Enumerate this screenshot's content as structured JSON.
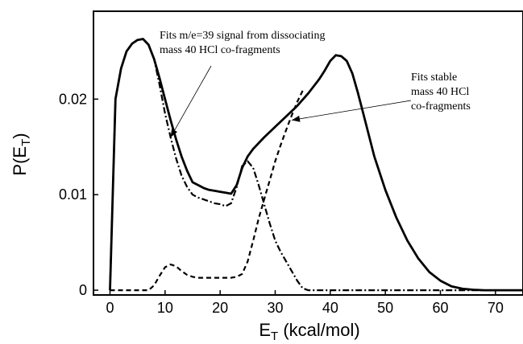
{
  "chart_data": {
    "type": "line",
    "xlabel": {
      "main": "E",
      "sub": "T",
      "unit": " (kcal/mol)"
    },
    "ylabel": {
      "main": "P(E",
      "sub": "T",
      "close": ")"
    },
    "xlim": [
      -3,
      75
    ],
    "ylim": [
      -0.0005,
      0.0292
    ],
    "x_ticks": [
      0,
      10,
      20,
      30,
      40,
      50,
      60,
      70
    ],
    "y_ticks": [
      {
        "value": 0,
        "label": "0"
      },
      {
        "value": 0.01,
        "label": "0.01"
      },
      {
        "value": 0.02,
        "label": "0.02"
      }
    ],
    "series": [
      {
        "style": "solid",
        "x": [
          0,
          1,
          2,
          3,
          4,
          5,
          6,
          7,
          8,
          9,
          10,
          11,
          12,
          13,
          14,
          15,
          16,
          17,
          18,
          19,
          20,
          21,
          22,
          23,
          24,
          25,
          26,
          28,
          30,
          32,
          34,
          36,
          38,
          39,
          40,
          41,
          42,
          43,
          44,
          45,
          46,
          48,
          50,
          52,
          54,
          56,
          58,
          60,
          62,
          64,
          66,
          68,
          70,
          75
        ],
        "y": [
          0,
          0.02,
          0.0232,
          0.025,
          0.0258,
          0.0262,
          0.0263,
          0.0257,
          0.0242,
          0.0222,
          0.02,
          0.0178,
          0.0158,
          0.014,
          0.0125,
          0.0113,
          0.011,
          0.0107,
          0.0105,
          0.0104,
          0.0103,
          0.0102,
          0.0101,
          0.011,
          0.0128,
          0.014,
          0.0148,
          0.016,
          0.0171,
          0.0182,
          0.0193,
          0.0206,
          0.0221,
          0.023,
          0.024,
          0.0246,
          0.0245,
          0.024,
          0.0227,
          0.0207,
          0.0185,
          0.014,
          0.0105,
          0.0076,
          0.0052,
          0.0033,
          0.0019,
          0.001,
          0.0004,
          0.00015,
          5e-05,
          0,
          0,
          0
        ]
      },
      {
        "style": "dashdot",
        "x": [
          0,
          1,
          2,
          3,
          4,
          5,
          6,
          7,
          8,
          9,
          10,
          11,
          12,
          13,
          14,
          15,
          16,
          17,
          18,
          19,
          20,
          21,
          22,
          23,
          24,
          25,
          26,
          27,
          28,
          29,
          30,
          31,
          32,
          33,
          34,
          35,
          36,
          40,
          50,
          60,
          75
        ],
        "y": [
          0,
          0.02,
          0.0232,
          0.025,
          0.0258,
          0.0262,
          0.0263,
          0.0257,
          0.0242,
          0.0215,
          0.0185,
          0.016,
          0.0138,
          0.012,
          0.0108,
          0.01,
          0.0097,
          0.0095,
          0.0093,
          0.0091,
          0.009,
          0.0088,
          0.0091,
          0.0108,
          0.013,
          0.0135,
          0.0128,
          0.011,
          0.009,
          0.007,
          0.0052,
          0.004,
          0.003,
          0.002,
          0.001,
          0.0002,
          0,
          0,
          0,
          0,
          0
        ]
      },
      {
        "style": "dashed",
        "x": [
          0,
          7,
          8,
          9,
          10,
          11,
          12,
          13,
          14,
          15,
          16,
          17,
          18,
          19,
          20,
          21,
          22,
          23,
          24,
          25,
          26,
          27,
          28,
          29,
          30,
          31,
          32,
          33,
          34,
          35
        ],
        "y": [
          0,
          0,
          0.0005,
          0.0015,
          0.0024,
          0.0027,
          0.0025,
          0.002,
          0.0016,
          0.0014,
          0.0013,
          0.0013,
          0.0013,
          0.0013,
          0.0013,
          0.0013,
          0.0013,
          0.0014,
          0.0017,
          0.003,
          0.0052,
          0.0075,
          0.0095,
          0.0115,
          0.0135,
          0.0152,
          0.0168,
          0.0183,
          0.0197,
          0.0209
        ]
      }
    ],
    "annotations": [
      {
        "name": "dissociating",
        "lines": [
          "Fits m/e=39 signal from dissociating",
          "mass 40 HCl co-fragments"
        ],
        "arrow_to": [
          11,
          0.016
        ]
      },
      {
        "name": "stable",
        "lines": [
          "Fits stable",
          "mass 40 HCl",
          "co-fragments"
        ],
        "arrow_to": [
          33,
          0.0178
        ]
      }
    ]
  }
}
